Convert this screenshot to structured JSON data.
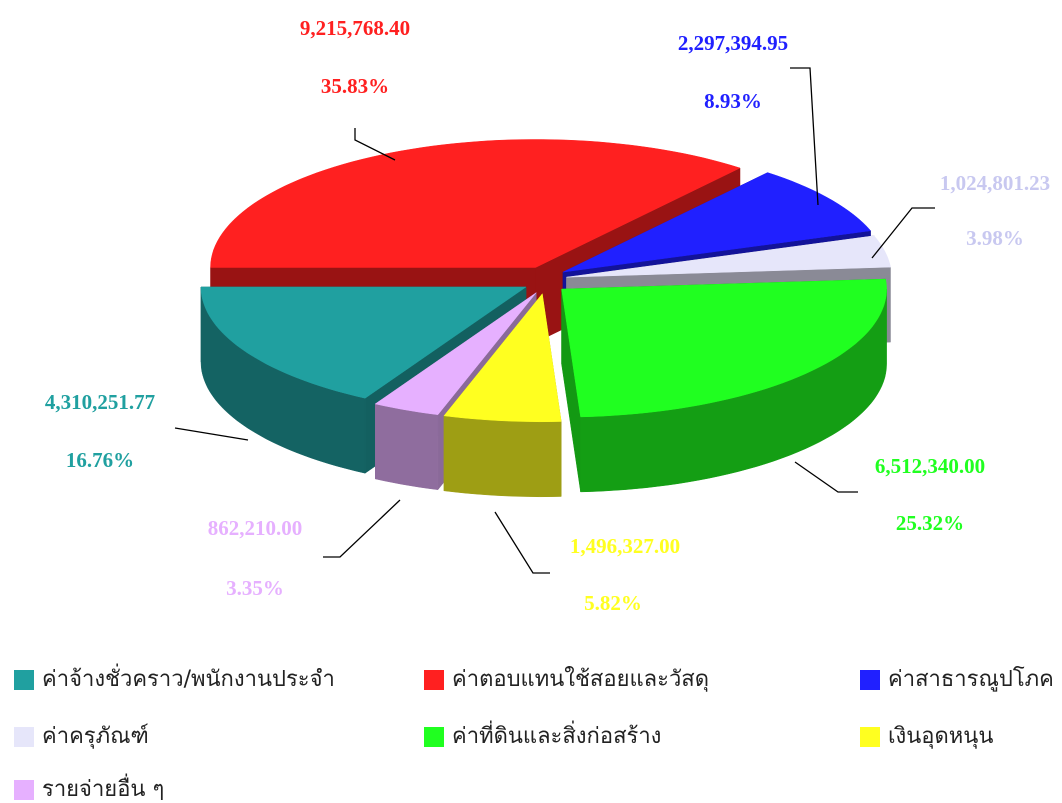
{
  "chart_data": {
    "type": "pie3d",
    "categories": [
      "ค่าจ้างชั่วคราว/พนักงานประจำ",
      "ค่าตอบแทนใช้สอยและวัสดุ",
      "ค่าสาธารณูปโภค",
      "ค่าครุภัณฑ์",
      "ค่าที่ดินและสิ่งก่อสร้าง",
      "เงินอุดหนุน",
      "รายจ่ายอื่น ๆ"
    ],
    "values": [
      4310251.77,
      9215768.4,
      2297394.95,
      1024801.23,
      6512340.0,
      1496327.0,
      862210.0
    ],
    "value_labels": [
      "4,310,251.77",
      "9,215,768.40",
      "2,297,394.95",
      "1,024,801.23",
      "6,512,340.00",
      "1,496,327.00",
      "862,210.00"
    ],
    "percents": [
      16.76,
      35.83,
      8.93,
      3.98,
      25.32,
      5.82,
      3.35
    ],
    "percent_labels": [
      "16.76%",
      "35.83%",
      "8.93%",
      "3.98%",
      "25.32%",
      "5.82%",
      "3.35%"
    ],
    "colors": [
      "#20a0a0",
      "#ff2020",
      "#2020ff",
      "#e6e6fa",
      "#20ff20",
      "#ffff20",
      "#e6b0ff"
    ],
    "label_colors": [
      "#20a0a0",
      "#ff2020",
      "#2020ff",
      "#c8c8f0",
      "#20ff20",
      "#ffff20",
      "#e6b0ff"
    ],
    "legend": "bottom"
  }
}
